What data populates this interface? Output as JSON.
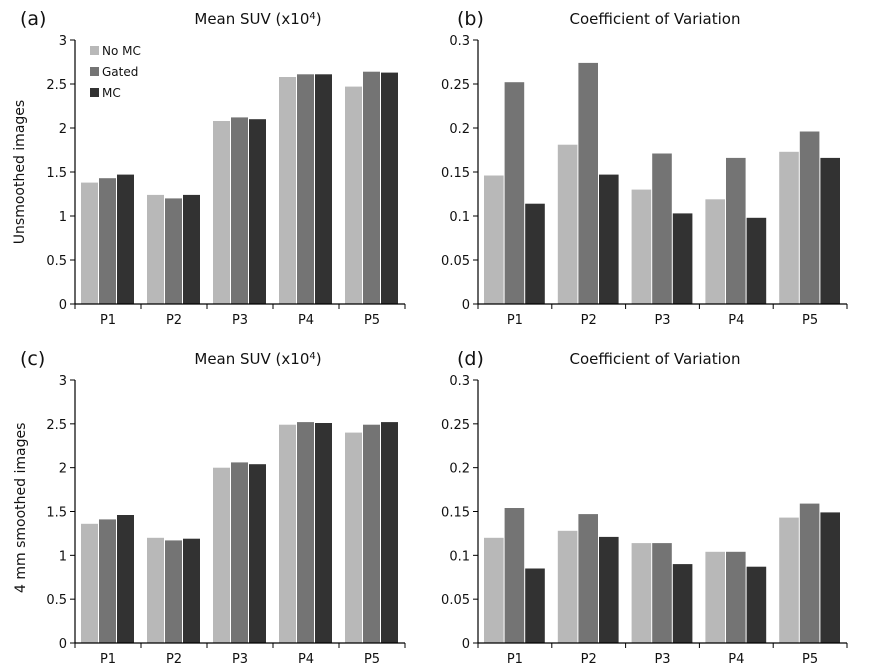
{
  "row_labels": [
    "Unsmoothed images",
    "4 mm smoothed images"
  ],
  "colors": {
    "No MC": "#b8b8b8",
    "Gated": "#747474",
    "MC": "#323232",
    "axis": "#000000"
  },
  "chart_data": [
    {
      "panel": "(a)",
      "type": "bar",
      "title": "Mean SUV (x10",
      "title_superscript": "4",
      "title_suffix": ")",
      "categories": [
        "P1",
        "P2",
        "P3",
        "P4",
        "P5"
      ],
      "ylim": [
        0,
        3
      ],
      "yticks": [
        "0",
        "0.5",
        "1",
        "1.5",
        "2",
        "2.5",
        "3"
      ],
      "legend": [
        "No MC",
        "Gated",
        "MC"
      ],
      "legend_position": "top-left",
      "series": [
        {
          "name": "No MC",
          "values": [
            1.38,
            1.24,
            2.08,
            2.58,
            2.47
          ]
        },
        {
          "name": "Gated",
          "values": [
            1.43,
            1.2,
            2.12,
            2.61,
            2.64
          ]
        },
        {
          "name": "MC",
          "values": [
            1.47,
            1.24,
            2.1,
            2.61,
            2.63
          ]
        }
      ]
    },
    {
      "panel": "(b)",
      "type": "bar",
      "title": "Coefficient of Variation",
      "categories": [
        "P1",
        "P2",
        "P3",
        "P4",
        "P5"
      ],
      "ylim": [
        0,
        0.3
      ],
      "yticks": [
        "0",
        "0.05",
        "0.1",
        "0.15",
        "0.2",
        "0.25",
        "0.3"
      ],
      "series": [
        {
          "name": "No MC",
          "values": [
            0.146,
            0.181,
            0.13,
            0.119,
            0.173
          ]
        },
        {
          "name": "Gated",
          "values": [
            0.252,
            0.274,
            0.171,
            0.166,
            0.196
          ]
        },
        {
          "name": "MC",
          "values": [
            0.114,
            0.147,
            0.103,
            0.098,
            0.166
          ]
        }
      ]
    },
    {
      "panel": "(c)",
      "type": "bar",
      "title": "Mean SUV (x10",
      "title_superscript": "4",
      "title_suffix": ")",
      "categories": [
        "P1",
        "P2",
        "P3",
        "P4",
        "P5"
      ],
      "ylim": [
        0,
        3
      ],
      "yticks": [
        "0",
        "0.5",
        "1",
        "1.5",
        "2",
        "2.5",
        "3"
      ],
      "series": [
        {
          "name": "No MC",
          "values": [
            1.36,
            1.2,
            2.0,
            2.49,
            2.4
          ]
        },
        {
          "name": "Gated",
          "values": [
            1.41,
            1.17,
            2.06,
            2.52,
            2.49
          ]
        },
        {
          "name": "MC",
          "values": [
            1.46,
            1.19,
            2.04,
            2.51,
            2.52
          ]
        }
      ]
    },
    {
      "panel": "(d)",
      "type": "bar",
      "title": "Coefficient of Variation",
      "categories": [
        "P1",
        "P2",
        "P3",
        "P4",
        "P5"
      ],
      "ylim": [
        0,
        0.3
      ],
      "yticks": [
        "0",
        "0.05",
        "0.1",
        "0.15",
        "0.2",
        "0.25",
        "0.3"
      ],
      "series": [
        {
          "name": "No MC",
          "values": [
            0.12,
            0.128,
            0.114,
            0.104,
            0.143
          ]
        },
        {
          "name": "Gated",
          "values": [
            0.154,
            0.147,
            0.114,
            0.104,
            0.159
          ]
        },
        {
          "name": "MC",
          "values": [
            0.085,
            0.121,
            0.09,
            0.087,
            0.149
          ]
        }
      ]
    }
  ]
}
